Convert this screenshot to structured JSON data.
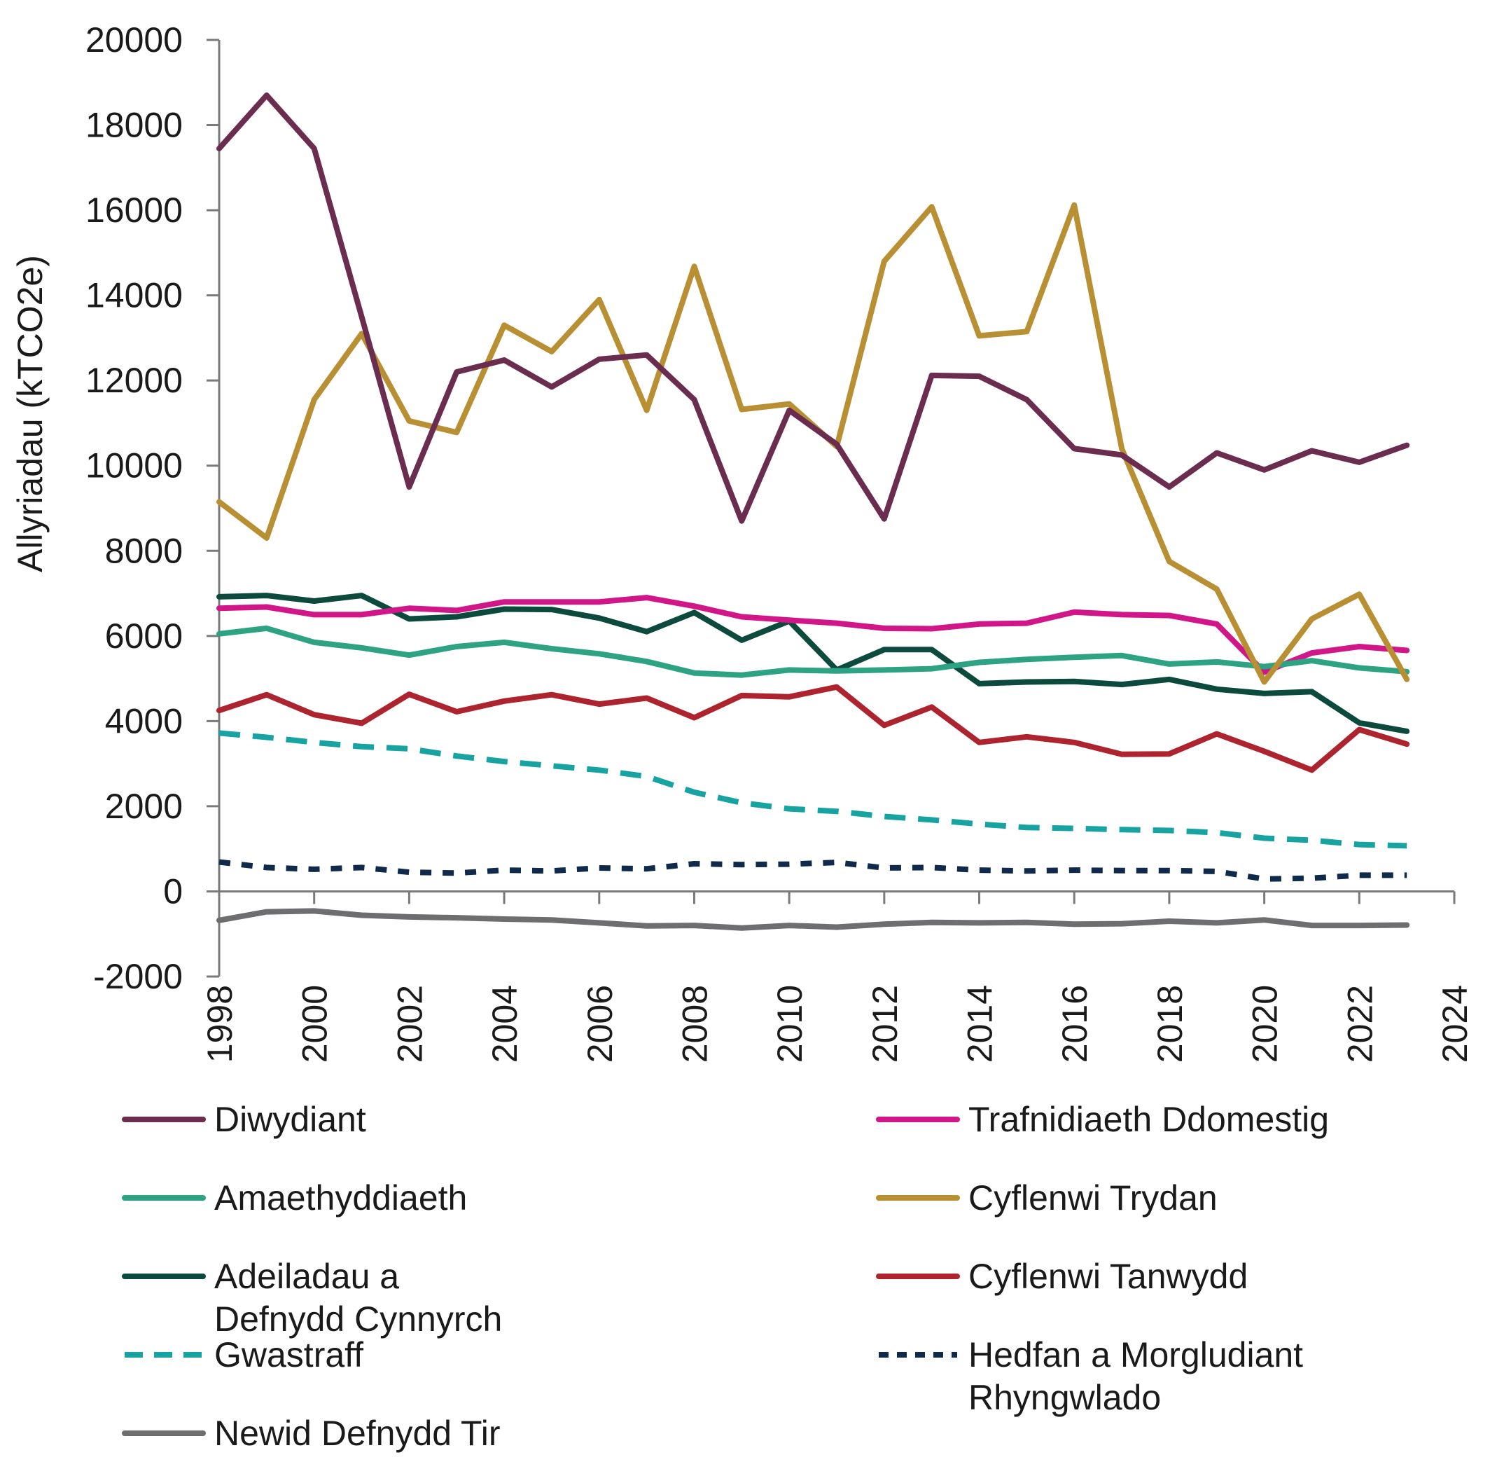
{
  "chart_data": {
    "type": "line",
    "title": "",
    "xlabel": "",
    "ylabel": "Allyriadau (kTCO2e)",
    "xlim": [
      1998,
      2024
    ],
    "ylim": [
      -2000,
      20000
    ],
    "x_ticks": [
      "1998",
      "2000",
      "2002",
      "2004",
      "2006",
      "2008",
      "2010",
      "2012",
      "2014",
      "2016",
      "2018",
      "2020",
      "2022",
      "2024"
    ],
    "y_ticks": [
      "20000",
      "18000",
      "16000",
      "14000",
      "12000",
      "10000",
      "8000",
      "6000",
      "4000",
      "2000",
      "0",
      "-2000"
    ],
    "legend_position": "bottom",
    "grid": false,
    "x": [
      1998,
      1999,
      2000,
      2001,
      2002,
      2003,
      2004,
      2005,
      2006,
      2007,
      2008,
      2009,
      2010,
      2011,
      2012,
      2013,
      2014,
      2015,
      2016,
      2017,
      2018,
      2019,
      2020,
      2021,
      2022,
      2023
    ],
    "series": [
      {
        "name": "Diwydiant",
        "color": "#6b2d4f",
        "dash": "solid",
        "values": [
          17450,
          18700,
          17450,
          13500,
          9500,
          12200,
          12480,
          11850,
          12500,
          12600,
          11550,
          8700,
          11300,
          10500,
          8750,
          12120,
          12100,
          11550,
          10400,
          10250,
          9500,
          10300,
          9900,
          10350,
          10080,
          10480
        ]
      },
      {
        "name": "Trafnidiaeth Ddomestig",
        "color": "#d1168a",
        "dash": "solid",
        "values": [
          6650,
          6680,
          6500,
          6500,
          6650,
          6600,
          6800,
          6800,
          6800,
          6900,
          6700,
          6450,
          6370,
          6300,
          6180,
          6170,
          6280,
          6300,
          6560,
          6500,
          6480,
          6280,
          5150,
          5600,
          5750,
          5660
        ]
      },
      {
        "name": "Amaethyddiaeth",
        "color": "#2ea383",
        "dash": "solid",
        "values": [
          6050,
          6180,
          5850,
          5720,
          5550,
          5750,
          5850,
          5700,
          5580,
          5400,
          5130,
          5080,
          5200,
          5180,
          5200,
          5230,
          5380,
          5450,
          5500,
          5540,
          5340,
          5390,
          5280,
          5420,
          5250,
          5160
        ]
      },
      {
        "name": "Cyflenwi Trydan",
        "color": "#b88f33",
        "dash": "solid",
        "values": [
          9150,
          8300,
          11550,
          13100,
          11050,
          10780,
          13300,
          12680,
          13900,
          11300,
          14680,
          11320,
          11450,
          10450,
          14800,
          16080,
          13050,
          13150,
          16120,
          10400,
          7750,
          7100,
          4920,
          6400,
          6980,
          4980
        ]
      },
      {
        "name": "Adeiladau a Defnydd Cynnyrch",
        "color": "#0c4a3e",
        "dash": "solid",
        "values": [
          6920,
          6950,
          6820,
          6950,
          6400,
          6450,
          6630,
          6620,
          6420,
          6100,
          6550,
          5900,
          6350,
          5200,
          5680,
          5680,
          4880,
          4920,
          4930,
          4860,
          4980,
          4750,
          4650,
          4690,
          3960,
          3760
        ]
      },
      {
        "name": "Cyflenwi Tanwydd",
        "color": "#ad232e",
        "dash": "solid",
        "values": [
          4250,
          4620,
          4150,
          3950,
          4630,
          4220,
          4470,
          4620,
          4400,
          4540,
          4080,
          4600,
          4570,
          4800,
          3900,
          4330,
          3500,
          3630,
          3500,
          3220,
          3230,
          3700,
          3290,
          2850,
          3800,
          3460
        ]
      },
      {
        "name": "Gwastraff",
        "color": "#16a3a2",
        "dash": "dashed",
        "values": [
          3720,
          3620,
          3500,
          3400,
          3350,
          3180,
          3050,
          2950,
          2850,
          2700,
          2330,
          2080,
          1940,
          1880,
          1760,
          1680,
          1580,
          1500,
          1480,
          1450,
          1430,
          1380,
          1250,
          1200,
          1100,
          1070
        ]
      },
      {
        "name": "Hedfan a Morgludiant Rhyngwlado",
        "color": "#0f2a4a",
        "dash": "dotted",
        "values": [
          690,
          560,
          520,
          560,
          450,
          430,
          500,
          480,
          550,
          530,
          650,
          630,
          640,
          680,
          550,
          560,
          500,
          480,
          500,
          490,
          490,
          470,
          290,
          310,
          380,
          380
        ]
      },
      {
        "name": "Newid Defnydd Tir",
        "color": "#6e6e70",
        "dash": "solid",
        "values": [
          -680,
          -480,
          -460,
          -560,
          -600,
          -620,
          -650,
          -670,
          -740,
          -810,
          -800,
          -860,
          -800,
          -840,
          -770,
          -730,
          -740,
          -730,
          -770,
          -760,
          -700,
          -740,
          -670,
          -800,
          -800,
          -790
        ]
      }
    ]
  }
}
